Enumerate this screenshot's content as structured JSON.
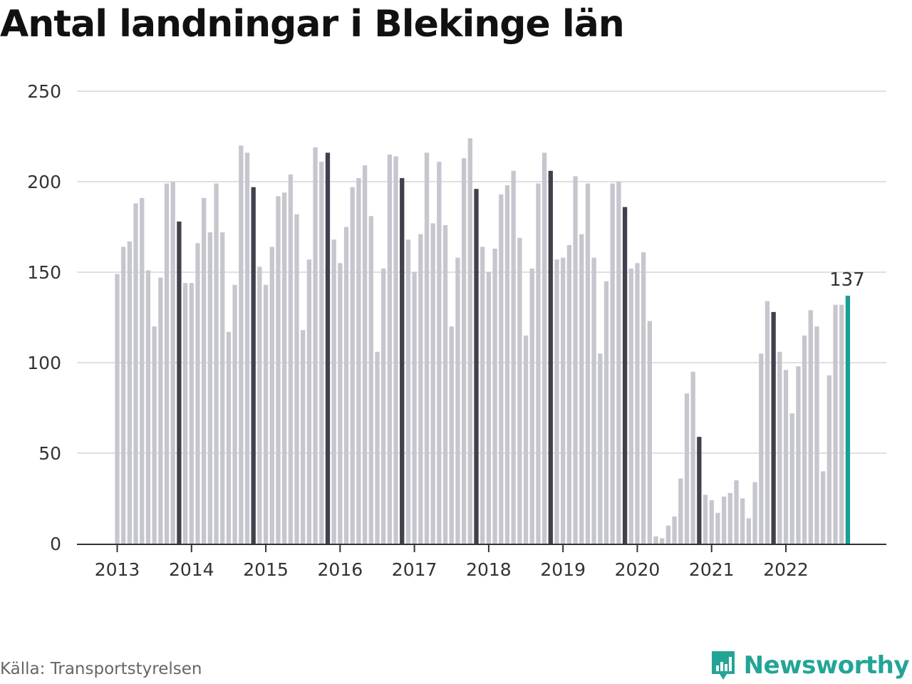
{
  "title": "Antal landningar i Blekinge län",
  "source": "Källa: Transportstyrelsen",
  "brand": "Newsworthy",
  "colors": {
    "bar": "#c6c6ce",
    "highlight": "#41414d",
    "latest": "#1a9e94",
    "grid": "#e0e0e3",
    "axis": "#333333"
  },
  "chart_data": {
    "type": "bar",
    "title": "Antal landningar i Blekinge län",
    "xlabel": "",
    "ylabel": "",
    "ylim": [
      0,
      250
    ],
    "yticks": [
      0,
      50,
      100,
      150,
      200,
      250
    ],
    "grid": true,
    "start_month": "2013-01",
    "x_tick_labels": [
      "2013",
      "2014",
      "2015",
      "2016",
      "2017",
      "2018",
      "2019",
      "2020",
      "2021",
      "2022"
    ],
    "highlighted_month": "November",
    "latest_label": "137",
    "series": [
      {
        "values": [
          149,
          164,
          167,
          188,
          191,
          151,
          120,
          147,
          199,
          200,
          178,
          144,
          144,
          166,
          191,
          172,
          199,
          172,
          117,
          143,
          220,
          216,
          197,
          153,
          143,
          164,
          192,
          194,
          204,
          182,
          118,
          157,
          219,
          211,
          216,
          168,
          155,
          175,
          197,
          202,
          209,
          181,
          106,
          152,
          215,
          214,
          202,
          168,
          150,
          171,
          216,
          177,
          211,
          176,
          120,
          158,
          213,
          224,
          196,
          164,
          150,
          163,
          193,
          198,
          206,
          169,
          115,
          152,
          199,
          216,
          206,
          157,
          158,
          165,
          203,
          171,
          199,
          158,
          105,
          145,
          199,
          200,
          186,
          152,
          155,
          161,
          123,
          4,
          3,
          10,
          15,
          36,
          83,
          95,
          59,
          27,
          24,
          17,
          26,
          28,
          35,
          25,
          14,
          34,
          105,
          134,
          128,
          106,
          96,
          72,
          98,
          115,
          129,
          120,
          40,
          93,
          132,
          132,
          137
        ]
      }
    ]
  }
}
